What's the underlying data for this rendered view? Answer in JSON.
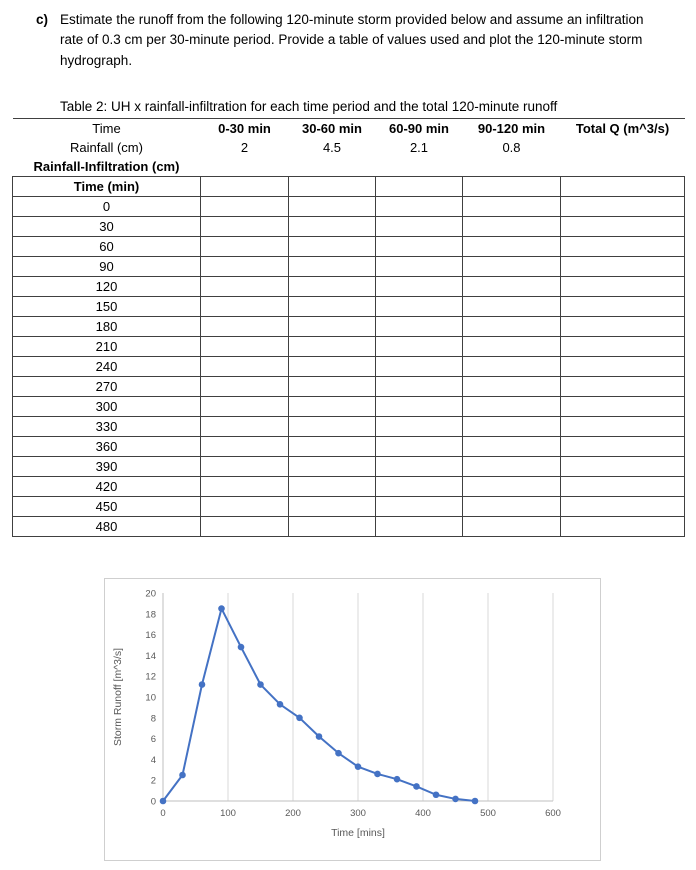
{
  "problem": {
    "label": "c)",
    "text": "Estimate the runoff from the following 120-minute storm provided below and assume an infiltration rate of 0.3 cm per 30-minute period. Provide a table of values used and plot the 120-minute storm hydrograph."
  },
  "table": {
    "title": "Table 2: UH x rainfall-infiltration for each time period and the total 120-minute runoff",
    "header_row": {
      "label": "Time",
      "columns": [
        "0-30 min",
        "30-60 min",
        "60-90 min",
        "90-120 min"
      ],
      "total_label": "Total Q (m^3/s)"
    },
    "rainfall_row": {
      "label": "Rainfall (cm)",
      "values": [
        "2",
        "4.5",
        "2.1",
        "0.8"
      ]
    },
    "infiltration_row_label": "Rainfall-Infiltration (cm)",
    "time_header": "Time (min)",
    "time_rows": [
      "0",
      "30",
      "60",
      "90",
      "120",
      "150",
      "180",
      "210",
      "240",
      "270",
      "300",
      "330",
      "360",
      "390",
      "420",
      "450",
      "480"
    ]
  },
  "chart_data": {
    "type": "line",
    "x": [
      0,
      30,
      60,
      90,
      120,
      150,
      180,
      210,
      240,
      270,
      300,
      330,
      360,
      390,
      420,
      450,
      480
    ],
    "y": [
      0,
      2.5,
      11.2,
      18.5,
      14.8,
      11.2,
      9.3,
      8,
      6.2,
      4.6,
      3.3,
      2.6,
      2.1,
      1.4,
      0.6,
      0.2,
      0
    ],
    "title": "",
    "xlabel": "Time [mins]",
    "ylabel": "Storm Runoff [m^3/s]",
    "xlim": [
      0,
      600
    ],
    "ylim": [
      0,
      20
    ],
    "x_ticks": [
      0,
      100,
      200,
      300,
      400,
      500,
      600
    ],
    "y_ticks": [
      0,
      2,
      4,
      6,
      8,
      10,
      12,
      14,
      16,
      18,
      20
    ],
    "line_color": "#4472C4",
    "grid": "vertical",
    "legend": "none",
    "marker": "circle"
  }
}
